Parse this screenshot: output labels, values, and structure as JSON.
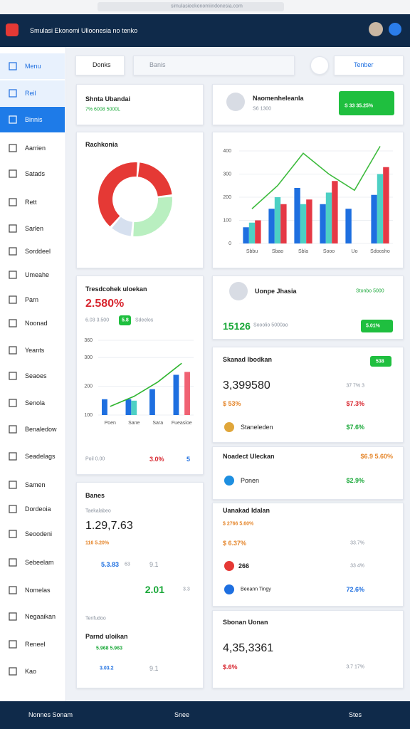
{
  "browser": {
    "url": "simulasieekonomiindonesia.com"
  },
  "header": {
    "title": "Smulasi Ekonomi Ulloonesia no tenko"
  },
  "sidebar": [
    "Menu",
    "Reil",
    "Binnis",
    "Aarrien",
    "Satads",
    "Rett",
    "Sarlen",
    "Sorddeel",
    "Umeahe",
    "Parn",
    "Noonad",
    "Yeants",
    "Seaoes",
    "Senola",
    "Benaledow",
    "Seadelags",
    "Samen",
    "Dordeoia",
    "Seoodeni",
    "Sebeelam",
    "Nomelas",
    "Negaaikan",
    "Reneel",
    "Kao"
  ],
  "toolbar": {
    "button": "Donks",
    "search": "Banis",
    "action": "Tenber"
  },
  "summary": {
    "title": "Shnta Ubandai",
    "value": "7% 6008 5000L"
  },
  "profile": {
    "name": "Naomenheleanla",
    "sub": "S6 1300",
    "badge": "S 33 35.25%"
  },
  "trend": {
    "value": "2.580%",
    "sub": "6.03 3.500",
    "badge": "5.8",
    "badge_note": "Sdeelos",
    "footer": [
      "Poil 0.00",
      "3.0%",
      "5"
    ]
  },
  "user": {
    "name": "Uonpe Jhasia",
    "status": "Stonbo 5000",
    "value": "15126",
    "sub": "Sooolio 5000ao",
    "badge": "5.01%"
  },
  "stock": {
    "title": "Skanad Ibodkan",
    "badge": "538",
    "value": "3,399580",
    "change": "37 7% 3",
    "row1": [
      "$ 53%",
      "$7.3%"
    ],
    "row2": [
      "Staneleden",
      "$7.6%"
    ]
  },
  "product": {
    "title": "Noadect Uleckan",
    "value": "$6.9 5.60%",
    "row": [
      "Ponen",
      "$2.9%"
    ]
  },
  "index": {
    "title": "Uanakad Idalan",
    "value": "$ 2766 5.60%",
    "row1": [
      "$ 6.37%",
      "33.7%"
    ],
    "row2": [
      "266",
      "33 4%"
    ],
    "row3": [
      "Beeann Tingy",
      "72.6%"
    ]
  },
  "summary2": {
    "title": "Sbonan Uonan",
    "value": "4,35,3361",
    "row": [
      "$.6%",
      "3.7 17%"
    ]
  },
  "balance": {
    "title": "Banes",
    "sub": "Taekalabeo",
    "value": "1.29,7.63",
    "change": "116 5.20%",
    "row1": [
      "5.3.83",
      "63",
      "9.1"
    ],
    "row2": [
      "2.01",
      "3.3"
    ],
    "note": "Tenfudoo",
    "title2": "Parnd uloikan",
    "value2": "5.968 5.963",
    "row3": [
      "3.03.2",
      "9.1"
    ]
  },
  "footer": {
    "name": "Nonnes Sonam",
    "mid": "Snee",
    "right": "Stes"
  },
  "chart_data": [
    {
      "type": "pie",
      "title": "Rachkonia",
      "values": [
        22,
        28,
        10,
        40
      ],
      "colors": [
        "#e53935",
        "#b9efc0",
        "#d6e0ef",
        "#e53935"
      ]
    },
    {
      "type": "bar",
      "categories": [
        "Sbbu",
        "Sbao",
        "Sbla",
        "Sooo",
        "Uo",
        "Sdoosho"
      ],
      "ylim": [
        0,
        400
      ],
      "yticks": [
        0,
        100,
        200,
        300,
        400
      ],
      "grid": true,
      "series": [
        {
          "color": "#1e6fe0",
          "values": [
            70,
            150,
            240,
            170,
            150,
            210
          ]
        },
        {
          "color": "#4dd0c4",
          "values": [
            90,
            200,
            170,
            220,
            null,
            300
          ]
        },
        {
          "color": "#e53945",
          "values": [
            100,
            170,
            190,
            270,
            null,
            330
          ]
        },
        {
          "type": "line",
          "color": "#3dbb3d",
          "values": [
            150,
            250,
            390,
            300,
            230,
            420
          ]
        }
      ]
    },
    {
      "type": "bar",
      "title": "Tresdcohek uloekan",
      "categories": [
        "Poen",
        "Sane",
        "Sara",
        "Fueasioe"
      ],
      "ylim": [
        100,
        360
      ],
      "yticks": [
        100,
        200,
        300,
        360
      ],
      "grid": true,
      "series": [
        {
          "color": "#1e6fe0",
          "values": [
            155,
            155,
            190,
            240
          ]
        },
        {
          "color": "#4dd0c4",
          "values": [
            null,
            150,
            null,
            null
          ]
        },
        {
          "color": "#f06273",
          "values": [
            null,
            null,
            null,
            250
          ]
        },
        {
          "type": "line",
          "color": "#2fb52f",
          "values": [
            130,
            165,
            215,
            280
          ]
        }
      ]
    }
  ]
}
